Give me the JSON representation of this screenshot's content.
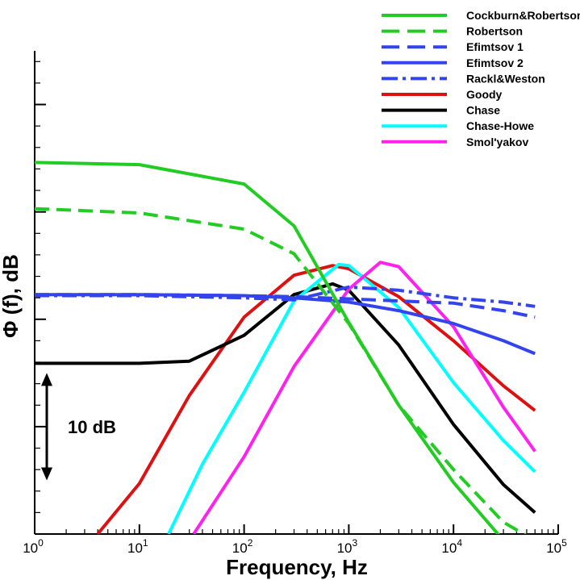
{
  "chart_data": {
    "type": "line",
    "title": "",
    "xlabel": "Frequency, Hz",
    "ylabel": "Φ (f), dB",
    "xscale": "log",
    "xlim": [
      1,
      100000
    ],
    "ylim": [
      0,
      45
    ],
    "y_unit_note": "relative dB, major y tick every 10 dB",
    "x_ticks": [
      {
        "base": "10",
        "exp": "0"
      },
      {
        "base": "10",
        "exp": "1"
      },
      {
        "base": "10",
        "exp": "2"
      },
      {
        "base": "10",
        "exp": "3"
      },
      {
        "base": "10",
        "exp": "4"
      },
      {
        "base": "10",
        "exp": "5"
      }
    ],
    "grid": false,
    "legend_position": "top-right",
    "annotation": {
      "text": "10 dB",
      "arrow_from": 5,
      "arrow_to": 15
    },
    "series": [
      {
        "name": "Cockburn&Robertson",
        "color": "#22cc22",
        "dash": "solid",
        "points": [
          [
            1,
            34.6
          ],
          [
            10,
            34.4
          ],
          [
            100,
            32.6
          ],
          [
            300,
            28.7
          ],
          [
            1000,
            19.7
          ],
          [
            3000,
            12.0
          ],
          [
            10000,
            4.8
          ],
          [
            30000,
            -0.6
          ],
          [
            60000,
            -2.8
          ]
        ]
      },
      {
        "name": "Robertson",
        "color": "#22cc22",
        "dash": "dashed",
        "points": [
          [
            1,
            30.3
          ],
          [
            10,
            29.9
          ],
          [
            100,
            28.4
          ],
          [
            300,
            26.1
          ],
          [
            1000,
            19.6
          ],
          [
            3000,
            12.0
          ],
          [
            10000,
            6.0
          ],
          [
            30000,
            1.1
          ],
          [
            60000,
            -0.6
          ]
        ]
      },
      {
        "name": "Efimtsov 1",
        "color": "#3344ee",
        "dash": "dashed",
        "points": [
          [
            1,
            22.3
          ],
          [
            10,
            22.3
          ],
          [
            100,
            22.2
          ],
          [
            300,
            22.1
          ],
          [
            1000,
            21.9
          ],
          [
            3000,
            21.7
          ],
          [
            10000,
            21.5
          ],
          [
            30000,
            20.8
          ],
          [
            60000,
            20.2
          ]
        ]
      },
      {
        "name": "Efimtsov 2",
        "color": "#3344ee",
        "dash": "solid",
        "points": [
          [
            1,
            22.3
          ],
          [
            10,
            22.3
          ],
          [
            100,
            22.2
          ],
          [
            300,
            22.0
          ],
          [
            1000,
            21.6
          ],
          [
            3000,
            20.8
          ],
          [
            10000,
            19.6
          ],
          [
            30000,
            18.0
          ],
          [
            60000,
            16.8
          ]
        ]
      },
      {
        "name": "Rackl&Weston",
        "color": "#3344ee",
        "dash": "dashdot",
        "points": [
          [
            1,
            22.2
          ],
          [
            10,
            22.2
          ],
          [
            100,
            22.0
          ],
          [
            300,
            21.8
          ],
          [
            1000,
            23.0
          ],
          [
            3000,
            22.7
          ],
          [
            10000,
            22.0
          ],
          [
            30000,
            21.6
          ],
          [
            60000,
            21.2
          ]
        ]
      },
      {
        "name": "Goody",
        "color": "#dd1111",
        "dash": "solid",
        "points": [
          [
            4,
            0
          ],
          [
            10,
            4.7
          ],
          [
            30,
            12.9
          ],
          [
            100,
            20.2
          ],
          [
            300,
            24.1
          ],
          [
            700,
            25.0
          ],
          [
            1000,
            24.7
          ],
          [
            3000,
            22.1
          ],
          [
            10000,
            18.0
          ],
          [
            30000,
            13.8
          ],
          [
            60000,
            11.5
          ]
        ]
      },
      {
        "name": "Chase",
        "color": "#000000",
        "dash": "solid",
        "points": [
          [
            1,
            15.9
          ],
          [
            10,
            15.9
          ],
          [
            30,
            16.1
          ],
          [
            100,
            18.5
          ],
          [
            300,
            22.3
          ],
          [
            700,
            23.3
          ],
          [
            1000,
            22.7
          ],
          [
            3000,
            17.6
          ],
          [
            10000,
            10.2
          ],
          [
            30000,
            4.6
          ],
          [
            60000,
            2.0
          ]
        ]
      },
      {
        "name": "Chase-Howe",
        "color": "#00ffff",
        "dash": "solid",
        "points": [
          [
            19,
            0
          ],
          [
            40,
            6.5
          ],
          [
            100,
            13.2
          ],
          [
            300,
            21.7
          ],
          [
            800,
            25.1
          ],
          [
            1000,
            25.0
          ],
          [
            3000,
            21.1
          ],
          [
            10000,
            14.1
          ],
          [
            30000,
            8.7
          ],
          [
            60000,
            5.8
          ]
        ]
      },
      {
        "name": "Smol'yakov",
        "color": "#ff22ee",
        "dash": "solid",
        "points": [
          [
            33,
            0
          ],
          [
            100,
            7.2
          ],
          [
            300,
            15.6
          ],
          [
            1000,
            22.8
          ],
          [
            2000,
            25.3
          ],
          [
            3000,
            24.9
          ],
          [
            10000,
            19.3
          ],
          [
            30000,
            11.8
          ],
          [
            60000,
            7.7
          ]
        ]
      }
    ]
  }
}
